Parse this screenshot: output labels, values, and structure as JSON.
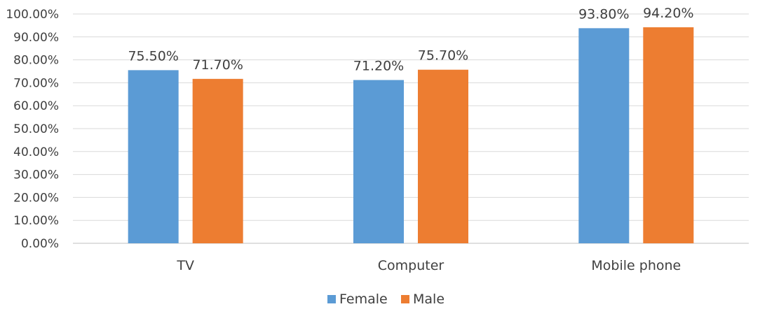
{
  "chart_data": {
    "type": "bar",
    "title": "",
    "xlabel": "",
    "ylabel": "",
    "categories": [
      "TV",
      "Computer",
      "Mobile phone"
    ],
    "series": [
      {
        "name": "Female",
        "color": "#5b9bd5",
        "values": [
          75.5,
          71.2,
          93.8
        ],
        "labels": [
          "75.50%",
          "71.20%",
          "93.80%"
        ]
      },
      {
        "name": "Male",
        "color": "#ed7d31",
        "values": [
          71.7,
          75.7,
          94.2
        ],
        "labels": [
          "71.70%",
          "75.70%",
          "94.20%"
        ]
      }
    ],
    "ylim": [
      0,
      100
    ],
    "yticks": [
      0,
      10,
      20,
      30,
      40,
      50,
      60,
      70,
      80,
      90,
      100
    ],
    "ytick_labels": [
      "0.00%",
      "10.00%",
      "20.00%",
      "30.00%",
      "40.00%",
      "50.00%",
      "60.00%",
      "70.00%",
      "80.00%",
      "90.00%",
      "100.00%"
    ],
    "grid": true,
    "legend_position": "bottom",
    "colors": {
      "gridline": "#d9d9d9",
      "axis": "#bfbfbf",
      "text": "#404040"
    }
  }
}
